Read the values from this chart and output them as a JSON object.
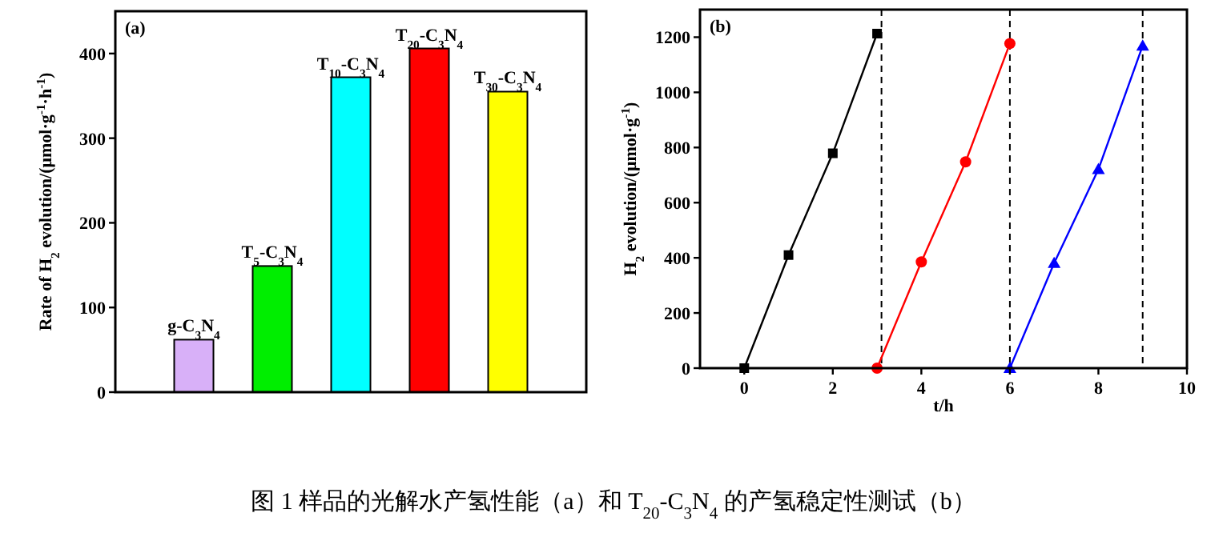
{
  "chart_data": [
    {
      "type": "bar",
      "title": "(a)",
      "ylabel": "Rate of H$_{2}$ evolution/(μmol·g$^{-1}$·h$^{-1}$)",
      "categories": [
        "g-C$_{3}$N$_{4}$",
        "T$_{5}$-C$_{3}$N$_{4}$",
        "T$_{10}$-C$_{3}$N$_{4}$",
        "T$_{20}$-C$_{3}$N$_{4}$",
        "T$_{30}$-C$_{3}$N$_{4}$"
      ],
      "values": [
        62,
        149,
        372,
        406,
        355
      ],
      "colors": [
        "#d8b0f8",
        "#00ee00",
        "#00ffff",
        "#ff0000",
        "#ffff00"
      ],
      "ylim": [
        0,
        450
      ],
      "yticks": [
        0,
        100,
        200,
        300,
        400
      ],
      "annotations": [
        "图 1 样品的光解水产氢性能（a）和 T$_{20}$-C$_{3}$N$_{4}$ 的产氢稳定性测试（b）"
      ]
    },
    {
      "type": "line",
      "title": "(b)",
      "xlabel": "t/h",
      "ylabel": "H$_{2}$ evolution/(μmol·g$^{-1}$)",
      "series": [
        {
          "x": [
            0,
            1,
            2,
            3
          ],
          "values": [
            0,
            410,
            779,
            1213
          ],
          "color": "#000000",
          "marker": "square"
        },
        {
          "x": [
            3,
            4,
            5,
            6
          ],
          "values": [
            0,
            385,
            748,
            1177
          ],
          "color": "#ff0000",
          "marker": "circle"
        },
        {
          "x": [
            6,
            7,
            8,
            9
          ],
          "values": [
            0,
            381,
            721,
            1169
          ],
          "color": "#0000ff",
          "marker": "triangle"
        }
      ],
      "xlim": [
        -1,
        10
      ],
      "xticks": [
        0,
        2,
        4,
        6,
        8,
        10
      ],
      "ylim": [
        0,
        1300
      ],
      "yticks": [
        0,
        200,
        400,
        600,
        800,
        1000,
        1200
      ],
      "ref_lines": [
        {
          "axis": "x",
          "value": 3.1,
          "color": "#000000",
          "line_style": "dashed"
        },
        {
          "axis": "x",
          "value": 6,
          "color": "#000000",
          "line_style": "dashed"
        },
        {
          "axis": "x",
          "value": 9,
          "color": "#000000",
          "line_style": "dashed"
        }
      ]
    }
  ]
}
